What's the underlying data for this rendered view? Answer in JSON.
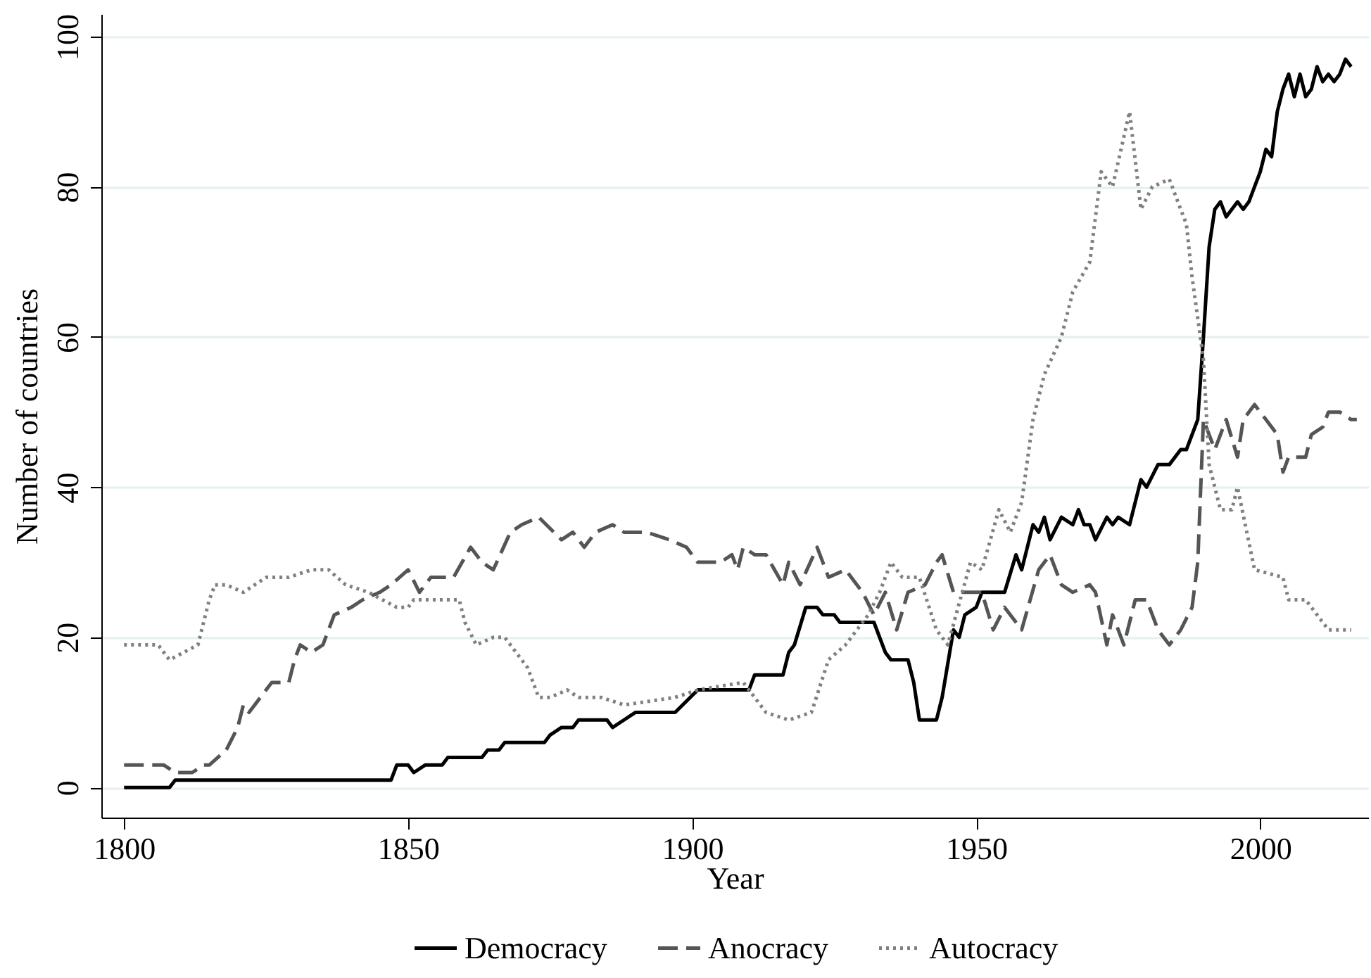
{
  "chart_data": {
    "type": "line",
    "xlabel": "Year",
    "ylabel": "Number of countries",
    "xlim": [
      1796,
      2019
    ],
    "xticks": [
      1800,
      1850,
      1900,
      1950,
      2000
    ],
    "ylim": [
      -4,
      103
    ],
    "yticks": [
      0,
      20,
      40,
      60,
      80,
      100
    ],
    "grid": "y",
    "legend": "bottom",
    "series": [
      {
        "name": "Democracy",
        "color": "#000000",
        "line_style": "solid",
        "x": [
          1800,
          1808,
          1809,
          1847,
          1848,
          1850,
          1851,
          1853,
          1856,
          1857,
          1863,
          1864,
          1866,
          1867,
          1874,
          1875,
          1877,
          1879,
          1880,
          1885,
          1886,
          1888,
          1890,
          1897,
          1901,
          1910,
          1911,
          1916,
          1917,
          1918,
          1920,
          1922,
          1923,
          1925,
          1926,
          1932,
          1934,
          1935,
          1938,
          1939,
          1940,
          1943,
          1944,
          1946,
          1947,
          1948,
          1950,
          1951,
          1955,
          1957,
          1958,
          1960,
          1961,
          1962,
          1963,
          1965,
          1967,
          1968,
          1969,
          1970,
          1971,
          1973,
          1974,
          1975,
          1977,
          1979,
          1980,
          1982,
          1984,
          1986,
          1987,
          1989,
          1990,
          1991,
          1992,
          1993,
          1994,
          1995,
          1996,
          1997,
          1998,
          1999,
          2000,
          2001,
          2002,
          2003,
          2004,
          2005,
          2006,
          2007,
          2008,
          2009,
          2010,
          2011,
          2012,
          2013,
          2014,
          2015,
          2016
        ],
        "values": [
          0,
          0,
          1,
          1,
          3,
          3,
          2,
          3,
          3,
          4,
          4,
          5,
          5,
          6,
          6,
          7,
          8,
          8,
          9,
          9,
          8,
          9,
          10,
          10,
          13,
          13,
          15,
          15,
          18,
          19,
          24,
          24,
          23,
          23,
          22,
          22,
          18,
          17,
          17,
          14,
          9,
          9,
          12,
          21,
          20,
          23,
          24,
          26,
          26,
          31,
          29,
          35,
          34,
          36,
          33,
          36,
          35,
          37,
          35,
          35,
          33,
          36,
          35,
          36,
          35,
          41,
          40,
          43,
          43,
          45,
          45,
          49,
          60,
          72,
          77,
          78,
          76,
          77,
          78,
          77,
          78,
          80,
          82,
          85,
          84,
          90,
          93,
          95,
          92,
          95,
          92,
          93,
          96,
          94,
          95,
          94,
          95,
          97,
          96
        ]
      },
      {
        "name": "Anocracy",
        "color": "#555555",
        "line_style": "dashed",
        "x": [
          1800,
          1807,
          1809,
          1812,
          1814,
          1815,
          1818,
          1820,
          1821,
          1822,
          1825,
          1826,
          1829,
          1830,
          1831,
          1833,
          1835,
          1837,
          1840,
          1842,
          1845,
          1847,
          1850,
          1852,
          1854,
          1858,
          1861,
          1863,
          1865,
          1868,
          1870,
          1873,
          1877,
          1879,
          1881,
          1883,
          1886,
          1888,
          1892,
          1896,
          1899,
          1901,
          1905,
          1907,
          1908,
          1909,
          1911,
          1913,
          1916,
          1917,
          1919,
          1922,
          1924,
          1927,
          1930,
          1932,
          1934,
          1936,
          1938,
          1941,
          1943,
          1944,
          1946,
          1948,
          1951,
          1953,
          1955,
          1958,
          1961,
          1963,
          1965,
          1967,
          1970,
          1971,
          1973,
          1974,
          1976,
          1978,
          1980,
          1982,
          1984,
          1986,
          1988,
          1989,
          1990,
          1992,
          1994,
          1996,
          1997,
          1999,
          2001,
          2003,
          2004,
          2005,
          2008,
          2009,
          2011,
          2012,
          2014,
          2016,
          2017
        ],
        "values": [
          3,
          3,
          2,
          2,
          3,
          3,
          5,
          8,
          11,
          10,
          13,
          14,
          14,
          17,
          19,
          18,
          19,
          23,
          24,
          25,
          26,
          27,
          29,
          26,
          28,
          28,
          32,
          30,
          29,
          34,
          35,
          36,
          33,
          34,
          32,
          34,
          35,
          34,
          34,
          33,
          32,
          30,
          30,
          31,
          29,
          32,
          31,
          31,
          27,
          30,
          27,
          32,
          28,
          29,
          26,
          23,
          26,
          21,
          26,
          27,
          30,
          31,
          26,
          26,
          26,
          21,
          24,
          21,
          29,
          31,
          27,
          26,
          27,
          26,
          19,
          23,
          19,
          25,
          25,
          21,
          19,
          21,
          24,
          30,
          49,
          45,
          49,
          44,
          49,
          51,
          49,
          47,
          42,
          44,
          44,
          47,
          48,
          50,
          50,
          49,
          49
        ]
      },
      {
        "name": "Autocracy",
        "color": "#808080",
        "line_style": "dotted",
        "x": [
          1800,
          1804,
          1806,
          1808,
          1813,
          1815,
          1816,
          1818,
          1821,
          1825,
          1829,
          1833,
          1836,
          1839,
          1843,
          1848,
          1850,
          1851,
          1859,
          1860,
          1862,
          1865,
          1867,
          1871,
          1873,
          1875,
          1878,
          1880,
          1884,
          1888,
          1897,
          1901,
          1909,
          1911,
          1913,
          1917,
          1921,
          1924,
          1927,
          1931,
          1933,
          1935,
          1937,
          1940,
          1943,
          1945,
          1949,
          1951,
          1954,
          1956,
          1958,
          1960,
          1962,
          1965,
          1967,
          1970,
          1972,
          1974,
          1977,
          1979,
          1981,
          1984,
          1987,
          1988,
          1990,
          1991,
          1993,
          1995,
          1996,
          1999,
          2004,
          2005,
          2008,
          2012,
          2016
        ],
        "values": [
          19,
          19,
          19,
          17,
          19,
          25,
          27,
          27,
          26,
          28,
          28,
          29,
          29,
          27,
          26,
          24,
          24,
          25,
          25,
          22,
          19,
          20,
          20,
          16,
          12,
          12,
          13,
          12,
          12,
          11,
          12,
          13,
          14,
          12,
          10,
          9,
          10,
          17,
          19,
          23,
          26,
          30,
          28,
          28,
          21,
          19,
          30,
          29,
          37,
          34,
          38,
          49,
          55,
          60,
          66,
          70,
          82,
          80,
          90,
          77,
          80,
          81,
          75,
          68,
          57,
          43,
          37,
          37,
          40,
          29,
          28,
          25,
          25,
          21,
          21
        ]
      }
    ]
  }
}
